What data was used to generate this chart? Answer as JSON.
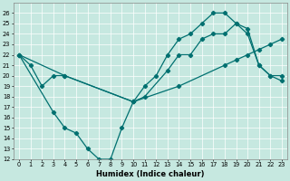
{
  "xlabel": "Humidex (Indice chaleur)",
  "xlim": [
    -0.5,
    23.5
  ],
  "ylim": [
    12,
    27
  ],
  "yticks": [
    12,
    13,
    14,
    15,
    16,
    17,
    18,
    19,
    20,
    21,
    22,
    23,
    24,
    25,
    26
  ],
  "xticks": [
    0,
    1,
    2,
    3,
    4,
    5,
    6,
    7,
    8,
    9,
    10,
    11,
    12,
    13,
    14,
    15,
    16,
    17,
    18,
    19,
    20,
    21,
    22,
    23
  ],
  "bg_color": "#c6e8e0",
  "line_color": "#007070",
  "line1_x": [
    0,
    1,
    2,
    3,
    4,
    10,
    11,
    12,
    13,
    14,
    15,
    16,
    17,
    18,
    19,
    20,
    21,
    22,
    23
  ],
  "line1_y": [
    22,
    21,
    19,
    20,
    20,
    17.5,
    19,
    20,
    22,
    23.5,
    24,
    25,
    26,
    26,
    25,
    24,
    21,
    20,
    20
  ],
  "line2_x": [
    0,
    3,
    4,
    5,
    6,
    7,
    8,
    9,
    10,
    11,
    13,
    14,
    15,
    16,
    17,
    18,
    19,
    20,
    21,
    22,
    23
  ],
  "line2_y": [
    22,
    16.5,
    15,
    14.5,
    13,
    12,
    12,
    15,
    17.5,
    18,
    20.5,
    22,
    22,
    23.5,
    24,
    24,
    25,
    24.5,
    21,
    20,
    19.5
  ],
  "line3_x": [
    0,
    4,
    10,
    14,
    18,
    19,
    20,
    21,
    22,
    23
  ],
  "line3_y": [
    22,
    20,
    17.5,
    19,
    21,
    21.5,
    22,
    22.5,
    23,
    23.5
  ]
}
